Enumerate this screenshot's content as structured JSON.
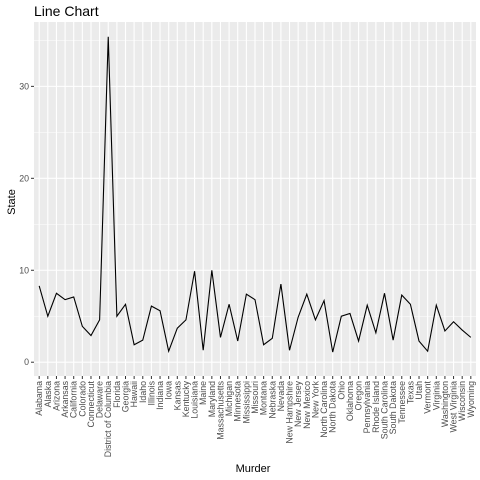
{
  "chart_data": {
    "type": "line",
    "title": "Line Chart",
    "xlabel": "Murder",
    "ylabel": "State",
    "x": [
      "Alabama",
      "Alaska",
      "Arizona",
      "Arkansas",
      "California",
      "Colorado",
      "Connecticut",
      "Delaware",
      "District of Columbia",
      "Florida",
      "Georgia",
      "Hawaii",
      "Idaho",
      "Illinois",
      "Indiana",
      "Iowa",
      "Kansas",
      "Kentucky",
      "Louisiana",
      "Maine",
      "Maryland",
      "Massachusetts",
      "Michigan",
      "Minnesota",
      "Mississippi",
      "Missouri",
      "Montana",
      "Nebraska",
      "Nevada",
      "New Hampshire",
      "New Jersey",
      "New Mexico",
      "New York",
      "North Carolina",
      "North Dakota",
      "Ohio",
      "Oklahoma",
      "Oregon",
      "Pennsylvania",
      "Rhode Island",
      "South Carolina",
      "South Dakota",
      "Tennessee",
      "Texas",
      "Utah",
      "Vermont",
      "Virginia",
      "Washington",
      "West Virginia",
      "Wisconsin",
      "Wyoming"
    ],
    "series": [
      {
        "color": "#000000",
        "values": [
          8.3,
          5.0,
          7.5,
          6.8,
          7.1,
          3.9,
          2.9,
          4.6,
          35.4,
          5.0,
          6.3,
          1.9,
          2.4,
          6.1,
          5.6,
          1.2,
          3.7,
          4.6,
          9.9,
          1.3,
          10.0,
          2.7,
          6.3,
          2.3,
          7.4,
          6.8,
          1.9,
          2.6,
          8.5,
          1.3,
          4.9,
          7.4,
          4.6,
          6.7,
          1.1,
          5.0,
          5.3,
          2.3,
          6.2,
          3.2,
          7.5,
          2.4,
          7.3,
          6.3,
          2.3,
          1.2,
          6.2,
          3.4,
          4.4,
          3.5,
          2.7
        ]
      }
    ],
    "ylim": [
      -1.5,
      37.0
    ],
    "yticks": [
      0,
      10,
      20,
      30
    ],
    "grid": true,
    "panel_background": "#ebebeb",
    "grid_color": "#ffffff"
  }
}
